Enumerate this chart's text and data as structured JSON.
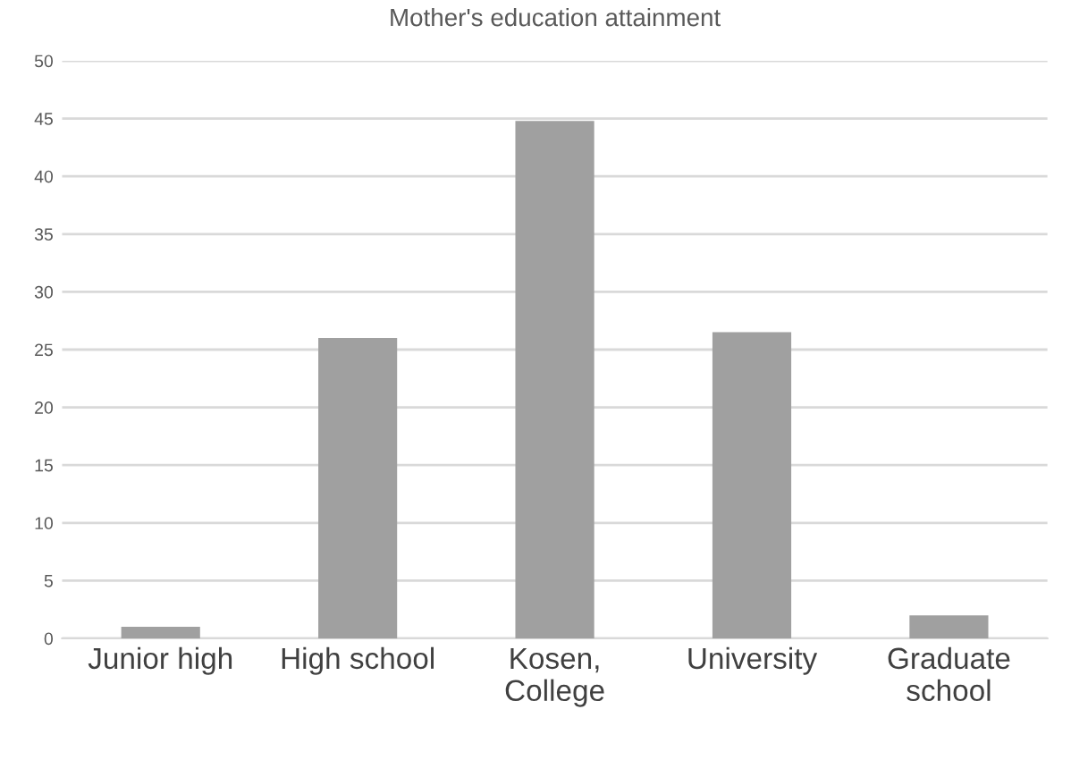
{
  "chart_data": {
    "type": "bar",
    "title": "Mother's education attainment",
    "categories": [
      "Junior high",
      "High school",
      "Kosen,\nCollege",
      "University",
      "Graduate\nschool"
    ],
    "values": [
      1,
      26,
      44.8,
      26.5,
      2
    ],
    "color": "#a0a0a0",
    "ylim": [
      0,
      50
    ],
    "yticks": [
      0,
      5,
      10,
      15,
      20,
      25,
      30,
      35,
      40,
      45,
      50
    ],
    "grid": "y"
  }
}
